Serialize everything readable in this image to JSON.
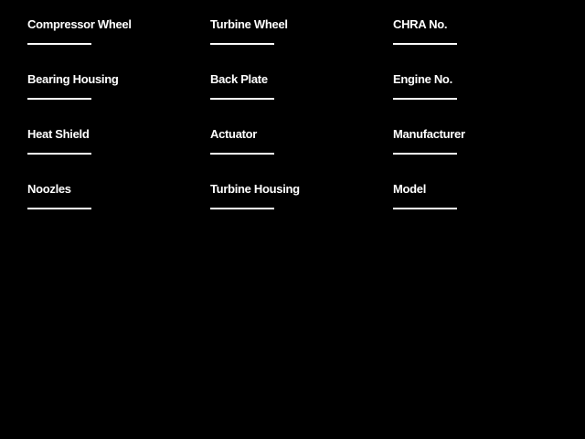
{
  "theme": {
    "background_color": "#000000",
    "text_color": "#FFFFFF",
    "field_line_color": "#FFFFFF"
  },
  "form": {
    "columns": [
      {
        "fields": [
          {
            "label": "Compressor Wheel",
            "value": ""
          },
          {
            "label": "Bearing Housing",
            "value": ""
          },
          {
            "label": "Heat Shield",
            "value": ""
          },
          {
            "label": "Noozles",
            "value": ""
          }
        ]
      },
      {
        "fields": [
          {
            "label": "Turbine Wheel",
            "value": ""
          },
          {
            "label": "Back Plate",
            "value": ""
          },
          {
            "label": "Actuator",
            "value": ""
          },
          {
            "label": "Turbine Housing",
            "value": ""
          }
        ]
      },
      {
        "fields": [
          {
            "label": "CHRA No.",
            "value": ""
          },
          {
            "label": "Engine No.",
            "value": ""
          },
          {
            "label": "Manufacturer",
            "value": ""
          },
          {
            "label": "Model",
            "value": ""
          }
        ]
      }
    ]
  }
}
